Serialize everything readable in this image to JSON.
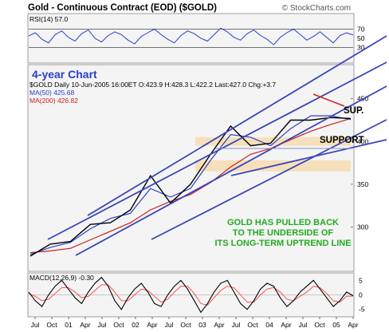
{
  "header": {
    "title": "Gold - Continuous Contract (EOD) ($GOLD)",
    "credit": "© StockCharts.com"
  },
  "colors": {
    "price": "#000000",
    "ma50": "#2a40c8",
    "ma200": "#c82020",
    "channel": "#3a46b8",
    "support_band": "#f6dcb0",
    "annotation": "#22aa22",
    "resistance": "#d02020",
    "panel_fill": "#f4f4f4",
    "rsi_line": "#2a3ec8"
  },
  "chart_data": [
    {
      "type": "line",
      "panel": "rsi",
      "label": "RSI(14) 57.0",
      "ylim": [
        0,
        100
      ],
      "y_ticks": [
        30,
        50,
        70
      ],
      "levels": [
        30,
        70
      ],
      "values": [
        55,
        62,
        48,
        40,
        58,
        66,
        52,
        44,
        60,
        68,
        50,
        42,
        56,
        64,
        58,
        46,
        38,
        54,
        62,
        70,
        58,
        48,
        40,
        56,
        66,
        60,
        50,
        44,
        58,
        72,
        64,
        52,
        46,
        60,
        68,
        56,
        48,
        36,
        52,
        62,
        70,
        58,
        46,
        54,
        64,
        52,
        40,
        56,
        62,
        57
      ]
    },
    {
      "type": "line",
      "panel": "price",
      "label": "4-year Chart",
      "legend": {
        "price": "$GOLD Daily 10-Jun-2005 16:00ET O:423.9 H:428.3 L:422.2 Last:427.0 Chg:+3.7",
        "ma50": "MA(50) 425.68",
        "ma200": "MA(200) 426.82"
      },
      "x": [
        "Jul 01",
        "Oct 01",
        "Jan 02",
        "Apr 02",
        "Jul 02",
        "Oct 02",
        "Jan 03",
        "Apr 03",
        "Jul 03",
        "Oct 03",
        "Jan 04",
        "Apr 04",
        "Jul 04",
        "Oct 04",
        "Jan 05",
        "Apr 05",
        "Jun 05"
      ],
      "series": [
        {
          "name": "$GOLD",
          "values": [
            266,
            280,
            283,
            303,
            305,
            320,
            360,
            328,
            350,
            385,
            418,
            395,
            398,
            425,
            425,
            428,
            427
          ]
        },
        {
          "name": "MA(50)",
          "values": [
            268,
            276,
            282,
            298,
            310,
            316,
            345,
            335,
            345,
            378,
            408,
            405,
            395,
            415,
            430,
            430,
            425.68
          ]
        },
        {
          "name": "MA(200)",
          "values": [
            270,
            272,
            275,
            285,
            295,
            305,
            320,
            330,
            338,
            352,
            370,
            385,
            392,
            402,
            412,
            420,
            426.82
          ]
        }
      ],
      "ylim": [
        250,
        460
      ],
      "y_ticks": [
        300,
        350,
        400,
        450
      ],
      "x_ticks": [
        "Jul",
        "Oct",
        "01",
        "Apr",
        "Jul",
        "Oct",
        "02",
        "Apr",
        "Jul",
        "Oct",
        "03",
        "Apr",
        "Jul",
        "Oct",
        "04",
        "Apr",
        "Jul",
        "Oct",
        "05",
        "Apr"
      ],
      "annotations": {
        "support_short": "SUP.",
        "support": "SUPPORT",
        "note": "GOLD HAS PULLED BACK TO THE UNDERSIDE OF ITS LONG-TERM UPTREND LINE"
      },
      "support_zones": [
        [
          395,
          405
        ],
        [
          365,
          378
        ]
      ]
    },
    {
      "type": "line",
      "panel": "macd",
      "label": "MACD(12,26,9) -0.30",
      "ylim": [
        -7,
        7
      ],
      "y_ticks": [
        -5,
        0,
        5
      ],
      "values": [
        1,
        -2,
        -4,
        0,
        3,
        5,
        2,
        -1,
        -3,
        1,
        4,
        6,
        3,
        -2,
        -5,
        -1,
        2,
        4,
        1,
        -3,
        -4,
        0,
        3,
        5,
        2,
        -2,
        -6,
        -3,
        1,
        4,
        5,
        1,
        -3,
        -5,
        -2,
        2,
        4,
        3,
        -1,
        -4,
        -2,
        1,
        3,
        5,
        2,
        -1,
        -4,
        -2,
        1,
        -0.3
      ],
      "signal": [
        0.5,
        -0.5,
        -2,
        -1.5,
        0.5,
        2.5,
        2.5,
        1,
        -1,
        -0.5,
        1.5,
        3.5,
        3.5,
        1,
        -2,
        -2,
        0,
        2,
        1.5,
        -0.5,
        -2.5,
        -1.5,
        1,
        3,
        3,
        0.5,
        -3,
        -3.5,
        -1,
        1.5,
        3,
        2.5,
        0,
        -2.5,
        -2.5,
        0,
        2,
        2.5,
        1,
        -1.5,
        -2,
        -0.5,
        1,
        3,
        2.5,
        0.5,
        -2,
        -2.5,
        -0.5,
        -0.4
      ]
    }
  ]
}
